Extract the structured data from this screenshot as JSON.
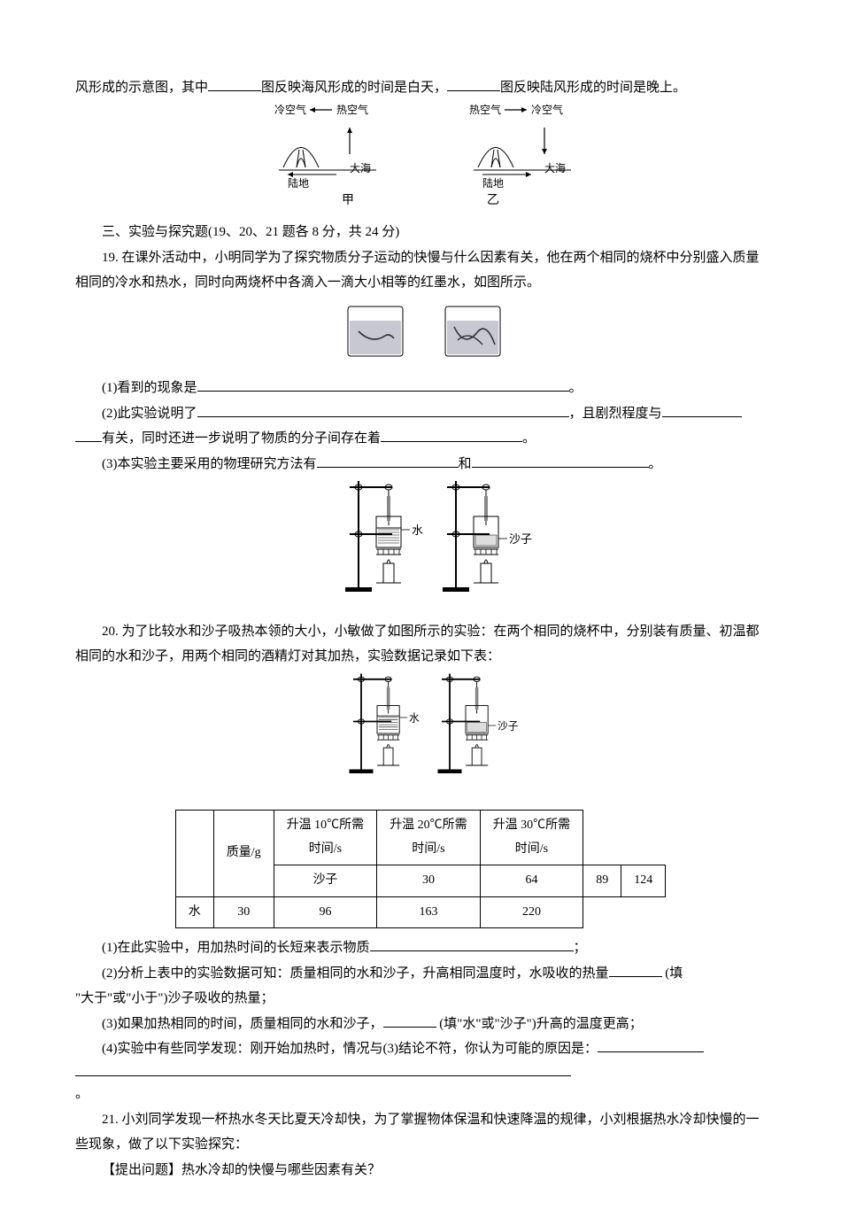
{
  "intro_line_prefix": "风形成的示意图，其中",
  "intro_line_mid": "图反映海风形成的时间是白天，",
  "intro_line_end": "图反映陆风形成的时间是晚上。",
  "wind_diagram": {
    "cold": "冷空气",
    "hot": "热空气",
    "land": "陆地",
    "sea": "大海",
    "label_a": "甲",
    "label_b": "乙"
  },
  "section3_title": "三、实验与探究题(19、20、21 题各 8 分，共 24 分)",
  "q19_text": "19. 在课外活动中，小明同学为了探究物质分子运动的快慢与什么因素有关，他在两个相同的烧杯中分别盛入质量相同的冷水和热水，同时向两烧杯中各滴入一滴大小相等的红墨水，如图所示。",
  "q19": {
    "p1_pre": "(1)看到的现象是",
    "p1_end": "。",
    "p2_pre": "(2)此实验说明了",
    "p2_mid": "，且剧烈程度与",
    "p2_line2_pre": "有关，同时还进一步说明了物质的分子间存在着",
    "p2_end": "。",
    "p3_pre": "(3)本实验主要采用的物理研究方法有",
    "p3_mid": "和",
    "p3_end": "。"
  },
  "heat_diagram": {
    "water": "水",
    "sand": "沙子"
  },
  "q20_text": "20. 为了比较水和沙子吸热本领的大小，小敏做了如图所示的实验：在两个相同的烧杯中，分别装有质量、初温都相同的水和沙子，用两个相同的酒精灯对其加热，实验数据记录如下表：",
  "table": {
    "col_mass": "质量/g",
    "col_t10_a": "升温 10℃所需",
    "col_t10_b": "时间/s",
    "col_t20_a": "升温 20℃所需",
    "col_t20_b": "时间/s",
    "col_t30_a": "升温 30℃所需",
    "col_t30_b": "时间/s",
    "row_sand": "沙子",
    "row_water": "水",
    "data": {
      "sand": [
        "30",
        "64",
        "89",
        "124"
      ],
      "water": [
        "30",
        "96",
        "163",
        "220"
      ]
    }
  },
  "q20": {
    "p1_pre": "(1)在此实验中，用加热时间的长短来表示物质",
    "p1_end": "；",
    "p2_pre": "(2)分析上表中的实验数据可知：质量相同的水和沙子，升高相同温度时，水吸收的热量",
    "p2_mid": " (填",
    "p2_end": "\"大于\"或\"小于\")沙子吸收的热量；",
    "p3_pre": "(3)如果加热相同的时间，质量相同的水和沙子，",
    "p3_end": " (填\"水\"或\"沙子\")升高的温度更高；",
    "p4_pre": "(4)实验中有些同学发现：刚开始加热时，情况与(3)结论不符，你认为可能的原因是：",
    "p4_end": "。"
  },
  "q21_text": "21. 小刘同学发现一杯热水冬天比夏天冷却快，为了掌握物体保温和快速降温的规律，小刘根据热水冷却快慢的一些现象，做了以下实验探究：",
  "q21_q": "【提出问题】热水冷却的快慢与哪些因素有关？",
  "colors": {
    "text": "#000000",
    "bg": "#ffffff",
    "line": "#000000",
    "beaker_fill": "#c8c8d2"
  }
}
